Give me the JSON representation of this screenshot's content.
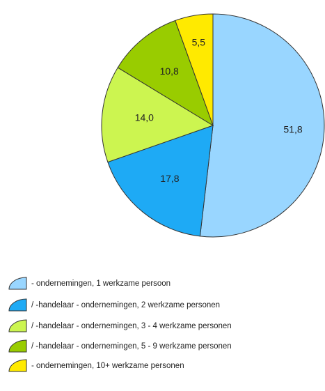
{
  "chart_data": {
    "type": "pie",
    "categories": [
      "- ondernemingen, 1 werkzame persoon",
      "/ -handelaar - ondernemingen, 2 werkzame personen",
      "/ -handelaar - ondernemingen, 3 - 4 werkzame personen",
      "/ -handelaar - ondernemingen, 5 - 9 werkzame personen",
      "- ondernemingen, 10+ werkzame personen"
    ],
    "values": [
      51.8,
      17.8,
      14.0,
      10.8,
      5.5
    ],
    "value_labels": [
      "51,8",
      "17,8",
      "14,0",
      "10,8",
      "5,5"
    ],
    "colors": [
      "#99d6ff",
      "#1eaaf5",
      "#ccf550",
      "#99cc00",
      "#ffea00"
    ]
  }
}
